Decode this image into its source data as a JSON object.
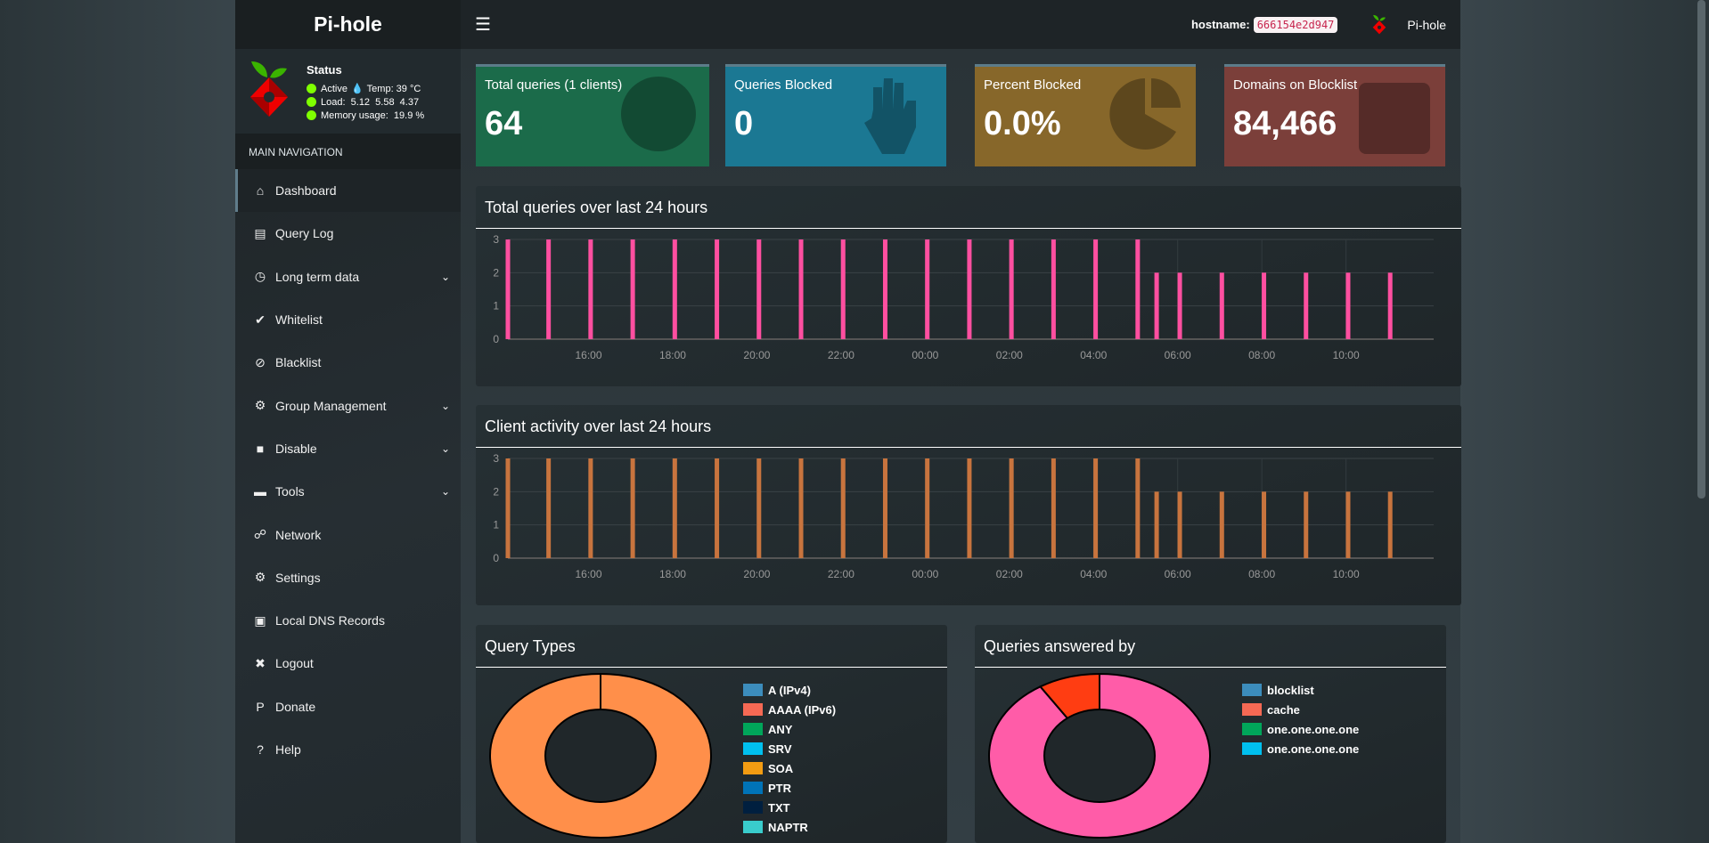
{
  "sidebar": {
    "logo_pre": "Pi-",
    "logo_bold": "hole",
    "status_title": "Status",
    "active": "Active",
    "temp": "Temp: 39 °C",
    "load": "Load:  5.12  5.58  4.37",
    "memory": "Memory usage:  19.9 %",
    "nav_header": "MAIN NAVIGATION",
    "items": [
      {
        "label": "Dashboard",
        "icon": "home-icon"
      },
      {
        "label": "Query Log",
        "icon": "file-icon"
      },
      {
        "label": "Long term data",
        "icon": "clock-icon",
        "chevron": true
      },
      {
        "label": "Whitelist",
        "icon": "check-circle-icon"
      },
      {
        "label": "Blacklist",
        "icon": "ban-icon"
      },
      {
        "label": "Group Management",
        "icon": "users-cog-icon",
        "chevron": true
      },
      {
        "label": "Disable",
        "icon": "square-icon",
        "chevron": true
      },
      {
        "label": "Tools",
        "icon": "folder-icon",
        "chevron": true
      },
      {
        "label": "Network",
        "icon": "network-icon"
      },
      {
        "label": "Settings",
        "icon": "cogs-icon"
      },
      {
        "label": "Local DNS Records",
        "icon": "address-book-icon"
      },
      {
        "label": "Logout",
        "icon": "user-times-icon"
      },
      {
        "label": "Donate",
        "icon": "paypal-icon"
      },
      {
        "label": "Help",
        "icon": "question-circle-icon"
      }
    ]
  },
  "header": {
    "hostname_label": "hostname:",
    "hostname": "666154e2d947",
    "brand": "Pi-hole"
  },
  "stats": [
    {
      "label": "Total queries (1 clients)",
      "value": "64",
      "color": "#1b6b4a",
      "icon": "globe-icon"
    },
    {
      "label": "Queries Blocked",
      "value": "0",
      "color": "#1b7893",
      "icon": "hand-icon"
    },
    {
      "label": "Percent Blocked",
      "value": "0.0%",
      "color": "#87672a",
      "icon": "pie-chart-icon"
    },
    {
      "label": "Domains on Blocklist",
      "value": "84,466",
      "color": "#7b3f3a",
      "icon": "list-icon"
    }
  ],
  "chart_data": [
    {
      "type": "bar",
      "title": "Total queries over last 24 hours",
      "color": "#ff4fa0",
      "ylim": [
        0,
        3
      ],
      "yticks": [
        "0",
        "1",
        "2",
        "3"
      ],
      "xlim": [
        "14:05",
        "12:05"
      ],
      "xticks": [
        "16:00",
        "18:00",
        "20:00",
        "22:00",
        "00:00",
        "02:00",
        "04:00",
        "06:00",
        "08:00",
        "10:00"
      ],
      "x": [
        "14:05",
        "15:03",
        "16:03",
        "17:03",
        "18:03",
        "19:03",
        "20:03",
        "21:03",
        "22:03",
        "23:03",
        "00:03",
        "01:03",
        "02:03",
        "03:03",
        "04:03",
        "05:03",
        "05:30",
        "06:03",
        "07:03",
        "08:03",
        "09:03",
        "10:03",
        "11:03"
      ],
      "values": [
        3,
        3,
        3,
        3,
        3,
        3,
        3,
        3,
        3,
        3,
        3,
        3,
        3,
        3,
        3,
        3,
        2,
        2,
        2,
        2,
        2,
        2,
        2
      ]
    },
    {
      "type": "bar",
      "title": "Client activity over last 24 hours",
      "color": "#c8743e",
      "ylim": [
        0,
        3
      ],
      "yticks": [
        "0",
        "1",
        "2",
        "3"
      ],
      "xlim": [
        "14:05",
        "12:05"
      ],
      "xticks": [
        "16:00",
        "18:00",
        "20:00",
        "22:00",
        "00:00",
        "02:00",
        "04:00",
        "06:00",
        "08:00",
        "10:00"
      ],
      "x": [
        "14:05",
        "15:03",
        "16:03",
        "17:03",
        "18:03",
        "19:03",
        "20:03",
        "21:03",
        "22:03",
        "23:03",
        "00:03",
        "01:03",
        "02:03",
        "03:03",
        "04:03",
        "05:03",
        "05:30",
        "06:03",
        "07:03",
        "08:03",
        "09:03",
        "10:03",
        "11:03"
      ],
      "values": [
        3,
        3,
        3,
        3,
        3,
        3,
        3,
        3,
        3,
        3,
        3,
        3,
        3,
        3,
        3,
        3,
        2,
        2,
        2,
        2,
        2,
        2,
        2
      ]
    },
    {
      "type": "pie",
      "title": "Query Types",
      "legend": [
        {
          "label": "A (IPv4)",
          "color": "#3c8dbc"
        },
        {
          "label": "AAAA (IPv6)",
          "color": "#f56954"
        },
        {
          "label": "ANY",
          "color": "#00a65a"
        },
        {
          "label": "SRV",
          "color": "#00c0ef"
        },
        {
          "label": "SOA",
          "color": "#f39c12"
        },
        {
          "label": "PTR",
          "color": "#0073b7"
        },
        {
          "label": "TXT",
          "color": "#001f3f"
        },
        {
          "label": "NAPTR",
          "color": "#39cccc"
        }
      ],
      "slices": [
        {
          "value": 100,
          "color": "#ff8f4a"
        }
      ]
    },
    {
      "type": "pie",
      "title": "Queries answered by",
      "legend": [
        {
          "label": "blocklist",
          "color": "#3c8dbc"
        },
        {
          "label": "cache",
          "color": "#f56954"
        },
        {
          "label": "one.one.one.one",
          "color": "#00a65a"
        },
        {
          "label": "one.one.one.one",
          "color": "#00c0ef"
        }
      ],
      "slices": [
        {
          "value": 91,
          "color": "#ff5ca8"
        },
        {
          "value": 9,
          "color": "#ff3d12"
        }
      ]
    }
  ]
}
